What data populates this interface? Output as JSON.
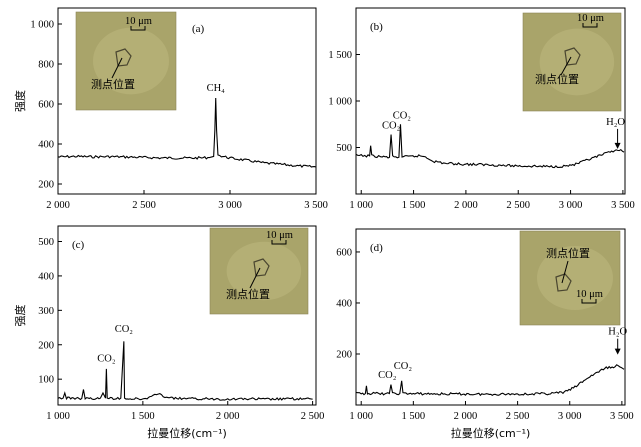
{
  "chart_data": [
    {
      "type": "line",
      "panel_label": "(a)",
      "xlim": [
        2000,
        3500
      ],
      "ylim": [
        150,
        1080
      ],
      "xticks": [
        2000,
        2500,
        3000,
        3500
      ],
      "xtick_labels": [
        "2 000",
        "2 500",
        "3 000",
        "3 500"
      ],
      "yticks": [
        200,
        400,
        600,
        800,
        1000
      ],
      "ytick_labels": [
        "200",
        "400",
        "600",
        "800",
        "1 000"
      ],
      "ylabel": "强度",
      "xlabel": "",
      "series": [
        {
          "x": [
            2000,
            2100,
            2200,
            2300,
            2400,
            2500,
            2600,
            2700,
            2800,
            2880,
            2905,
            2912,
            2917,
            2922,
            2930,
            2950,
            3000,
            3100,
            3200,
            3300,
            3400,
            3500
          ],
          "y": [
            335,
            338,
            336,
            337,
            335,
            333,
            330,
            330,
            330,
            332,
            338,
            470,
            630,
            470,
            345,
            340,
            330,
            318,
            305,
            298,
            290,
            285
          ]
        }
      ],
      "annotations": [
        {
          "text": "CH₄",
          "x": 2917,
          "y": 645
        }
      ],
      "inset": {
        "scale_text": "10 μm",
        "label": "测点位置"
      }
    },
    {
      "type": "line",
      "panel_label": "(b)",
      "xlim": [
        950,
        3520
      ],
      "ylim": [
        0,
        2000
      ],
      "xticks": [
        1000,
        1500,
        2000,
        2500,
        3000,
        3500
      ],
      "xtick_labels": [
        "1 000",
        "1 500",
        "2 000",
        "2 500",
        "3 000",
        "3 500"
      ],
      "yticks": [
        500,
        1000,
        1500
      ],
      "ytick_labels": [
        "500",
        "1 000",
        "1 500"
      ],
      "ylabel": "",
      "xlabel": "",
      "series": [
        {
          "x": [
            950,
            1000,
            1050,
            1080,
            1090,
            1100,
            1150,
            1200,
            1270,
            1285,
            1300,
            1360,
            1375,
            1390,
            1450,
            1550,
            1600,
            1700,
            1800,
            2000,
            2200,
            2400,
            2600,
            2800,
            2950,
            3050,
            3150,
            3250,
            3350,
            3420,
            3450,
            3480,
            3510
          ],
          "y": [
            415,
            412,
            410,
            410,
            520,
            410,
            405,
            400,
            395,
            640,
            400,
            395,
            750,
            400,
            400,
            410,
            405,
            350,
            330,
            320,
            315,
            305,
            300,
            295,
            300,
            320,
            360,
            400,
            440,
            470,
            480,
            465,
            450
          ]
        }
      ],
      "annotations": [
        {
          "text": "CO₂",
          "x": 1285,
          "y": 660
        },
        {
          "text": "CO₂",
          "x": 1388,
          "y": 770
        },
        {
          "text": "H₂O",
          "x": 3430,
          "y": 700
        }
      ],
      "inset": {
        "scale_text": "10 μm",
        "label": "测点位置"
      }
    },
    {
      "type": "line",
      "panel_label": "(c)",
      "xlim": [
        1000,
        2520
      ],
      "ylim": [
        25,
        545
      ],
      "xticks": [
        1000,
        1500,
        2000,
        2500
      ],
      "xtick_labels": [
        "1 000",
        "1 500",
        "2 000",
        "2 500"
      ],
      "yticks": [
        100,
        200,
        300,
        400,
        500
      ],
      "ytick_labels": [
        "100",
        "200",
        "300",
        "400",
        "500"
      ],
      "ylabel": "强度",
      "xlabel": "拉曼位移(cm⁻¹)",
      "series": [
        {
          "x": [
            1000,
            1030,
            1040,
            1050,
            1100,
            1140,
            1150,
            1160,
            1200,
            1250,
            1265,
            1280,
            1285,
            1290,
            1300,
            1370,
            1388,
            1392,
            1400,
            1450,
            1500,
            1550,
            1580,
            1600,
            1620,
            1650,
            1700,
            1800,
            1900,
            2000,
            2100,
            2200,
            2300,
            2400,
            2500
          ],
          "y": [
            45,
            45,
            60,
            45,
            45,
            44,
            70,
            44,
            43,
            45,
            60,
            45,
            130,
            45,
            44,
            45,
            210,
            45,
            44,
            43,
            42,
            48,
            55,
            58,
            52,
            46,
            44,
            43,
            43,
            42,
            43,
            42,
            42,
            43,
            42
          ]
        }
      ],
      "annotations": [
        {
          "text": "CO₂",
          "x": 1285,
          "y": 140
        },
        {
          "text": "CO₂",
          "x": 1388,
          "y": 225
        }
      ],
      "inset": {
        "scale_text": "10 μm",
        "label": "测点位置"
      }
    },
    {
      "type": "line",
      "panel_label": "(d)",
      "xlim": [
        950,
        3530
      ],
      "ylim": [
        0,
        690
      ],
      "xticks": [
        1000,
        1500,
        2000,
        2500,
        3000,
        3500
      ],
      "xtick_labels": [
        "1 000",
        "1 500",
        "2 000",
        "2 500",
        "3 000",
        "3 500"
      ],
      "yticks": [
        200,
        400,
        600
      ],
      "ytick_labels": [
        "200",
        "400",
        "600"
      ],
      "ylabel": "",
      "xlabel": "拉曼位移(cm⁻¹)",
      "series": [
        {
          "x": [
            950,
            1000,
            1040,
            1050,
            1060,
            1100,
            1150,
            1200,
            1270,
            1285,
            1300,
            1370,
            1388,
            1400,
            1500,
            1600,
            1800,
            2000,
            2200,
            2400,
            2600,
            2800,
            2950,
            3050,
            3150,
            3250,
            3350,
            3420,
            3450,
            3480,
            3520
          ],
          "y": [
            45,
            45,
            45,
            75,
            45,
            45,
            45,
            44,
            45,
            80,
            45,
            45,
            95,
            45,
            44,
            44,
            43,
            43,
            42,
            43,
            43,
            45,
            50,
            70,
            100,
            125,
            145,
            150,
            155,
            148,
            140
          ]
        }
      ],
      "annotations": [
        {
          "text": "CO₂",
          "x": 1250,
          "y": 90
        },
        {
          "text": "CO₂",
          "x": 1400,
          "y": 125
        },
        {
          "text": "H₂O",
          "x": 3460,
          "y": 260
        }
      ],
      "inset": {
        "scale_text": "10 μm",
        "label": "测点位置"
      }
    }
  ]
}
